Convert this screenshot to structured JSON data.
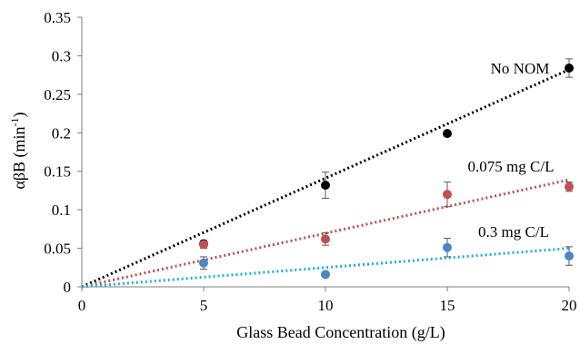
{
  "chart_data": {
    "type": "scatter",
    "title": "",
    "xlabel": "Glass Bead Concentration (g/L)",
    "ylabel": "αβB (min⁻¹)",
    "xlim": [
      0,
      20
    ],
    "ylim": [
      0,
      0.35
    ],
    "xticks": [
      0,
      5,
      10,
      15,
      20
    ],
    "yticks": [
      0,
      0.05,
      0.1,
      0.15,
      0.2,
      0.25,
      0.3,
      0.35
    ],
    "xtick_labels": [
      "0",
      "5",
      "10",
      "15",
      "20"
    ],
    "ytick_labels": [
      "0",
      "0.05",
      "0.1",
      "0.15",
      "0.2",
      "0.25",
      "0.3",
      "0.35"
    ],
    "grid": false,
    "legend": "none",
    "series": [
      {
        "name": "No NOM",
        "color": "#000000",
        "trend_color": "#000000",
        "x": [
          5,
          10,
          15,
          20
        ],
        "values": [
          0.056,
          0.132,
          0.199,
          0.284
        ],
        "error": [
          0,
          0.017,
          0,
          0.012
        ],
        "trendline_slope": 0.0141
      },
      {
        "name": "0.075 mg C/L",
        "color": "#c0504d",
        "trend_color": "#c0504d",
        "x": [
          5,
          10,
          15,
          20
        ],
        "values": [
          0.055,
          0.062,
          0.12,
          0.13
        ],
        "error": [
          0.005,
          0.008,
          0.016,
          0.006
        ],
        "trendline_slope": 0.00695
      },
      {
        "name": "0.3 mg C/L",
        "color": "#4a86c5",
        "trend_color": "#1fb0d6",
        "x": [
          5,
          10,
          15,
          20
        ],
        "values": [
          0.031,
          0.016,
          0.051,
          0.04
        ],
        "error": [
          0.008,
          0,
          0.012,
          0.012
        ],
        "trendline_slope": 0.0025
      }
    ]
  }
}
